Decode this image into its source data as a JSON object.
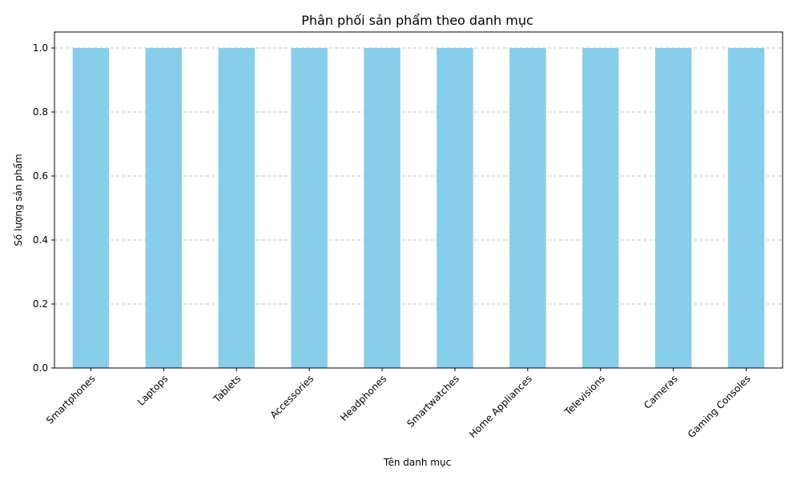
{
  "chart_data": {
    "type": "bar",
    "title": "Phân phối sản phẩm theo danh mục",
    "xlabel": "Tên danh mục",
    "ylabel": "Số lượng sản phẩm",
    "categories": [
      "Smartphones",
      "Laptops",
      "Tablets",
      "Accessories",
      "Headphones",
      "Smartwatches",
      "Home Appliances",
      "Televisions",
      "Cameras",
      "Gaming Consoles"
    ],
    "values": [
      1,
      1,
      1,
      1,
      1,
      1,
      1,
      1,
      1,
      1
    ],
    "ylim": [
      0,
      1.05
    ],
    "yticks": [
      0.0,
      0.2,
      0.4,
      0.6,
      0.8,
      1.0
    ],
    "ytick_labels": [
      "0.0",
      "0.2",
      "0.4",
      "0.6",
      "0.8",
      "1.0"
    ],
    "grid": "y-dashed",
    "bar_color": "#87ceeb"
  }
}
